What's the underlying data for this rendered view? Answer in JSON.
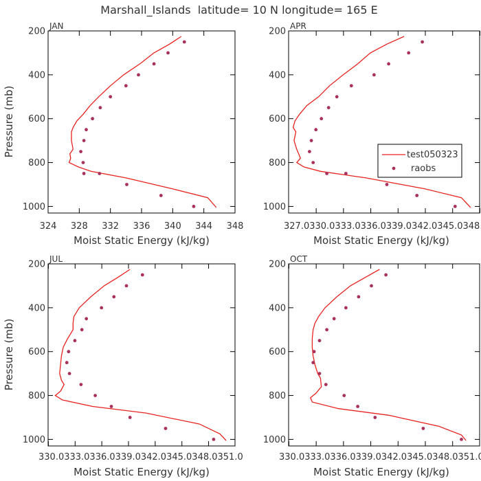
{
  "title": "Marshall_Islands  latitude= 10 N longitude= 165 E",
  "colors": {
    "model": "#e8221e",
    "obs": "#a8315b",
    "axis": "#000000",
    "text": "#333333"
  },
  "legend": {
    "model_label": "test050323",
    "obs_label": "raobs"
  },
  "chart_data": [
    {
      "type": "line",
      "panel": "JAN",
      "xlabel": "Moist Static Energy (kJ/kg)",
      "ylabel": "Pressure (mb)",
      "xlim": [
        324,
        348
      ],
      "ylim": [
        1030,
        200
      ],
      "xticks": [
        324,
        328,
        332,
        336,
        340,
        344,
        348
      ],
      "xtick_labels": [
        "324",
        "328",
        "332",
        "336",
        "340",
        "344",
        "348"
      ],
      "yticks": [
        200,
        400,
        600,
        800,
        1000
      ],
      "ytick_labels": [
        "200",
        "400",
        "600",
        "800",
        "1000"
      ],
      "series": [
        {
          "name": "test050323",
          "kind": "line",
          "x": [
            341.1,
            339.6,
            337.6,
            335.8,
            333.7,
            332.0,
            330.5,
            329.4,
            328.5,
            327.7,
            327.2,
            327.0,
            327.0,
            327.2,
            326.8,
            326.9,
            326.7,
            327.9,
            329.5,
            334.0,
            340.0,
            344.5,
            345.6
          ],
          "y": [
            225,
            260,
            300,
            350,
            400,
            450,
            500,
            540,
            580,
            610,
            640,
            660,
            700,
            740,
            760,
            780,
            800,
            820,
            840,
            870,
            920,
            960,
            1005
          ]
        },
        {
          "name": "raobs",
          "kind": "scatter",
          "x": [
            341.5,
            339.4,
            337.6,
            335.6,
            334.0,
            332.0,
            330.7,
            329.7,
            328.9,
            328.6,
            328.2,
            328.5,
            328.6,
            330.6,
            334.1,
            338.5,
            342.7
          ],
          "y": [
            250,
            300,
            350,
            400,
            450,
            500,
            550,
            600,
            650,
            700,
            750,
            800,
            850,
            850,
            900,
            950,
            1000
          ]
        }
      ]
    },
    {
      "type": "line",
      "panel": "APR",
      "xlabel": "Moist Static Energy (kJ/kg)",
      "ylabel": "Pressure (mb)",
      "xlim": [
        327.0,
        348.0
      ],
      "ylim": [
        1030,
        200
      ],
      "xticks": [
        327.0,
        330.0333,
        333.0333,
        336.0333,
        339.0333,
        342.0333,
        345.0333,
        348.0333
      ],
      "xtick_labels": [
        "327.0",
        "330.0",
        "333.0",
        "336.0",
        "339.0",
        "342.0",
        "345.0",
        "348.0"
      ],
      "xtick_text": "327.0330.0333.0336.0339.0342.0345.0348.0",
      "yticks": [
        200,
        400,
        600,
        800,
        1000
      ],
      "ytick_labels": [
        "200",
        "400",
        "600",
        "800",
        "1000"
      ],
      "series": [
        {
          "name": "test050323",
          "kind": "line",
          "x": [
            339.7,
            337.8,
            336.0,
            334.6,
            333.0,
            331.5,
            330.3,
            329.0,
            328.2,
            327.7,
            327.5,
            327.8,
            327.6,
            327.9,
            328.1,
            328.3,
            327.9,
            328.7,
            330.5,
            335.5,
            342.0,
            346.0,
            347.0
          ],
          "y": [
            225,
            260,
            300,
            350,
            400,
            450,
            500,
            540,
            580,
            610,
            640,
            660,
            700,
            740,
            760,
            780,
            800,
            820,
            840,
            870,
            920,
            960,
            1005
          ]
        },
        {
          "name": "raobs",
          "kind": "scatter",
          "x": [
            341.7,
            340.2,
            338.0,
            336.4,
            333.9,
            332.3,
            331.4,
            330.6,
            330.0,
            329.5,
            329.3,
            329.7,
            331.2,
            333.3,
            337.8,
            341.1,
            345.3
          ],
          "y": [
            250,
            300,
            350,
            400,
            450,
            500,
            550,
            600,
            650,
            700,
            750,
            800,
            850,
            850,
            900,
            950,
            1000
          ]
        }
      ]
    },
    {
      "type": "line",
      "panel": "JUL",
      "xlabel": "Moist Static Energy (kJ/kg)",
      "ylabel": "Pressure (mb)",
      "xlim": [
        330.0,
        351.0
      ],
      "ylim": [
        1030,
        200
      ],
      "xticks": [
        330.0333,
        333.0333,
        336.0333,
        339.0333,
        342.0333,
        345.0333,
        348.0333,
        351.0
      ],
      "xtick_labels": [
        "330.0",
        "333.0",
        "336.0",
        "339.0",
        "342.0",
        "345.0",
        "348.0",
        "351.0"
      ],
      "xtick_text": "330.0333.0336.0339.0342.0345.0348.0351.0",
      "yticks": [
        200,
        400,
        600,
        800,
        1000
      ],
      "ytick_labels": [
        "200",
        "400",
        "600",
        "800",
        "1000"
      ],
      "series": [
        {
          "name": "test050323",
          "kind": "line",
          "x": [
            339.2,
            337.9,
            336.3,
            334.8,
            333.5,
            332.9,
            332.8,
            332.8,
            332.2,
            331.7,
            331.5,
            331.4,
            331.3,
            331.5,
            331.8,
            331.4,
            330.8,
            331.6,
            335.0,
            341.0,
            347.0,
            349.3,
            350.0
          ],
          "y": [
            225,
            260,
            300,
            350,
            400,
            440,
            470,
            500,
            540,
            580,
            620,
            660,
            700,
            730,
            750,
            780,
            800,
            820,
            850,
            880,
            930,
            975,
            1005
          ]
        },
        {
          "name": "raobs",
          "kind": "scatter",
          "x": [
            340.6,
            338.8,
            337.4,
            336.0,
            334.3,
            333.8,
            333.0,
            332.3,
            332.1,
            332.4,
            333.7,
            335.3,
            337.1,
            339.2,
            343.2,
            348.6
          ],
          "y": [
            250,
            300,
            350,
            400,
            450,
            500,
            550,
            600,
            650,
            700,
            750,
            800,
            850,
            900,
            950,
            1000
          ]
        }
      ]
    },
    {
      "type": "line",
      "panel": "OCT",
      "xlabel": "Moist Static Energy (kJ/kg)",
      "ylabel": "Pressure (mb)",
      "xlim": [
        330.0,
        351.0
      ],
      "ylim": [
        1030,
        200
      ],
      "xticks": [
        330.0333,
        333.0333,
        336.0333,
        339.0333,
        342.0333,
        345.0333,
        348.0333,
        351.0
      ],
      "xtick_labels": [
        "330.0",
        "333.0",
        "336.0",
        "339.0",
        "342.0",
        "345.0",
        "348.0",
        "351.0"
      ],
      "xtick_text": "330.0333.0336.0339.0342.0345.0348.0351.0",
      "yticks": [
        200,
        400,
        600,
        800,
        1000
      ],
      "ytick_labels": [
        "200",
        "400",
        "600",
        "800",
        "1000"
      ],
      "series": [
        {
          "name": "test050323",
          "kind": "line",
          "x": [
            340.0,
            338.5,
            336.8,
            335.3,
            334.0,
            333.3,
            332.9,
            332.7,
            332.6,
            332.6,
            332.7,
            332.9,
            333.2,
            333.5,
            333.6,
            333.0,
            332.4,
            332.6,
            335.5,
            341.0,
            346.5,
            349.0,
            349.5
          ],
          "y": [
            225,
            260,
            300,
            350,
            400,
            440,
            470,
            500,
            540,
            580,
            620,
            660,
            700,
            720,
            760,
            790,
            810,
            830,
            860,
            890,
            940,
            980,
            1005
          ]
        },
        {
          "name": "raobs",
          "kind": "scatter",
          "x": [
            340.7,
            339.1,
            337.7,
            336.3,
            335.0,
            334.2,
            333.4,
            332.8,
            332.7,
            333.4,
            334.1,
            336.1,
            337.6,
            339.5,
            344.8,
            349.0
          ],
          "y": [
            250,
            300,
            350,
            400,
            450,
            500,
            550,
            600,
            650,
            700,
            750,
            800,
            850,
            900,
            950,
            1000
          ]
        }
      ]
    }
  ]
}
